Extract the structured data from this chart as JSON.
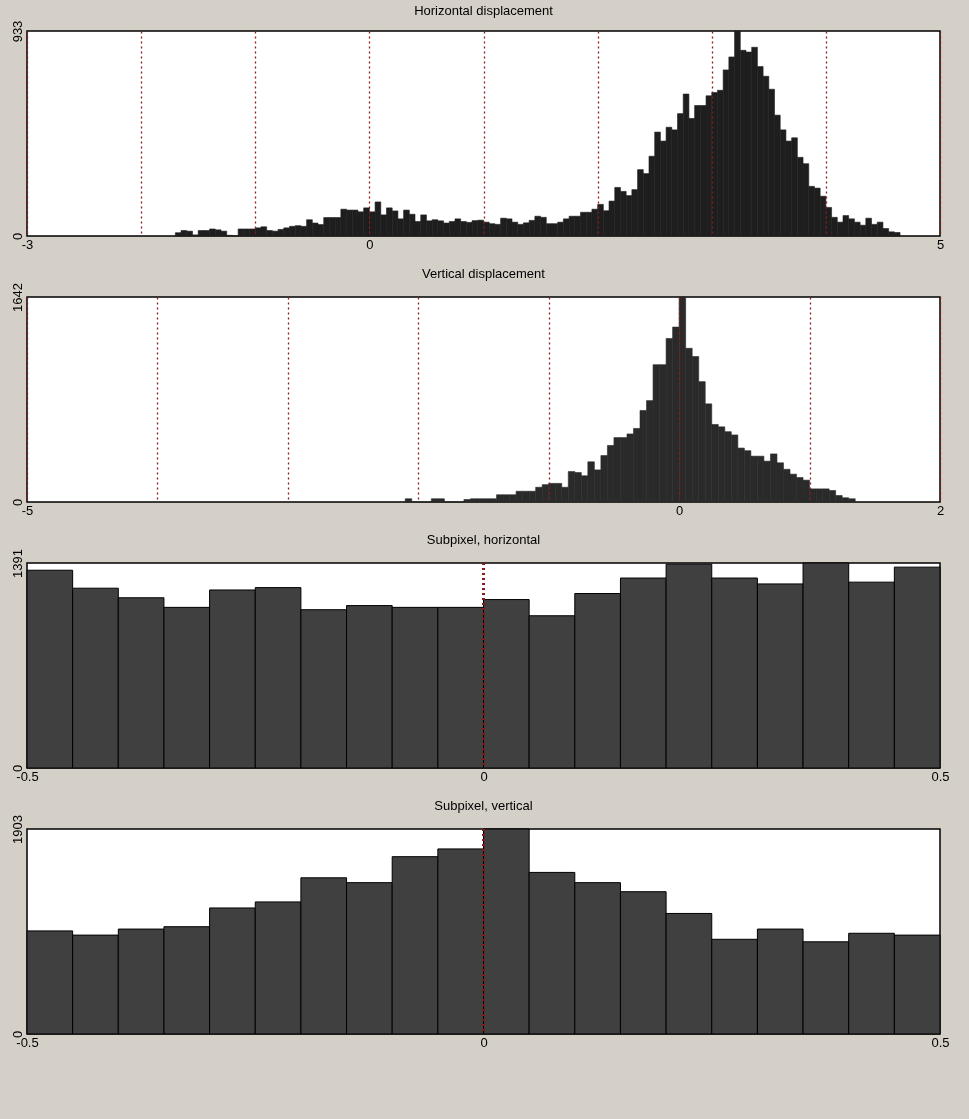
{
  "chart_data": [
    {
      "type": "histogram",
      "title": "Horizontal displacement",
      "color": "#1e1e1e",
      "grid": "x",
      "xlim": [
        -3,
        5
      ],
      "xticks": [
        -3,
        {
          "value": -2,
          "label": null
        },
        {
          "value": -1,
          "label": null
        },
        0,
        {
          "value": 1,
          "label": null
        },
        {
          "value": 2,
          "label": null
        },
        {
          "value": 3,
          "label": null
        },
        {
          "value": 4,
          "label": null
        },
        5
      ],
      "ylim": [
        0,
        933
      ],
      "yticks": [
        0,
        933
      ],
      "bins": [
        -1.7,
        -1.65,
        -1.6,
        -1.55,
        -1.5,
        -1.45,
        -1.4,
        -1.35,
        -1.3,
        -1.25,
        -1.2,
        -1.15,
        -1.1,
        -1.05,
        -1,
        -0.95,
        -0.9,
        -0.85,
        -0.8,
        -0.75,
        -0.7,
        -0.65,
        -0.6,
        -0.55,
        -0.5,
        -0.45,
        -0.4,
        -0.35,
        -0.3,
        -0.25,
        -0.2,
        -0.15,
        -0.1,
        -0.05,
        0,
        0.05,
        0.1,
        0.15,
        0.2,
        0.25,
        0.3,
        0.35,
        0.4,
        0.45,
        0.5,
        0.55,
        0.6,
        0.65,
        0.7,
        0.75,
        0.8,
        0.85,
        0.9,
        0.95,
        1,
        1.05,
        1.1,
        1.15,
        1.2,
        1.25,
        1.3,
        1.35,
        1.4,
        1.45,
        1.5,
        1.55,
        1.6,
        1.65,
        1.7,
        1.75,
        1.8,
        1.85,
        1.9,
        1.95,
        2,
        2.05,
        2.1,
        2.15,
        2.2,
        2.25,
        2.3,
        2.35,
        2.4,
        2.45,
        2.5,
        2.55,
        2.6,
        2.65,
        2.7,
        2.75,
        2.8,
        2.85,
        2.9,
        2.95,
        3,
        3.05,
        3.1,
        3.15,
        3.2,
        3.25,
        3.3,
        3.35,
        3.4,
        3.45,
        3.5,
        3.55,
        3.6,
        3.65,
        3.7,
        3.75,
        3.8,
        3.85,
        3.9,
        3.95,
        4,
        4.05,
        4.1,
        4.15,
        4.2,
        4.25,
        4.3,
        4.35,
        4.4,
        4.45,
        4.5,
        4.55,
        4.6,
        4.65
      ],
      "values": [
        15,
        25,
        22,
        5,
        25,
        25,
        32,
        28,
        22,
        3,
        0,
        32,
        32,
        32,
        37,
        42,
        25,
        22,
        30,
        37,
        44,
        47,
        44,
        74,
        59,
        52,
        84,
        84,
        84,
        122,
        118,
        118,
        110,
        128,
        110,
        155,
        96,
        128,
        114,
        78,
        118,
        99,
        66,
        96,
        69,
        74,
        69,
        59,
        66,
        78,
        66,
        62,
        70,
        72,
        63,
        56,
        53,
        81,
        78,
        63,
        53,
        60,
        71,
        90,
        85,
        56,
        56,
        63,
        78,
        90,
        90,
        108,
        108,
        122,
        144,
        115,
        159,
        221,
        203,
        184,
        211,
        302,
        284,
        363,
        473,
        432,
        495,
        483,
        557,
        646,
        535,
        594,
        594,
        638,
        653,
        663,
        756,
        815,
        933,
        845,
        837,
        859,
        771,
        727,
        668,
        550,
        483,
        432,
        447,
        358,
        329,
        226,
        218,
        181,
        130,
        85,
        63,
        93,
        78,
        63,
        49,
        81,
        53,
        63,
        34,
        19,
        16
      ]
    },
    {
      "type": "histogram",
      "title": "Vertical displacement",
      "color": "#2a2a2a",
      "grid": "x",
      "xlim": [
        -5,
        2
      ],
      "xticks": [
        -5,
        {
          "value": -4,
          "label": null
        },
        {
          "value": -3,
          "label": null
        },
        {
          "value": -2,
          "label": null
        },
        {
          "value": -1,
          "label": null
        },
        0,
        {
          "value": 1,
          "label": null
        },
        2
      ],
      "ylim": [
        0,
        1642
      ],
      "yticks": [
        0,
        1642
      ],
      "bins": [
        -2.1,
        -2.05,
        -2,
        -1.95,
        -1.9,
        -1.85,
        -1.8,
        -1.75,
        -1.7,
        -1.65,
        -1.6,
        -1.55,
        -1.5,
        -1.45,
        -1.4,
        -1.35,
        -1.3,
        -1.25,
        -1.2,
        -1.15,
        -1.1,
        -1.05,
        -1,
        -0.95,
        -0.9,
        -0.85,
        -0.8,
        -0.75,
        -0.7,
        -0.65,
        -0.6,
        -0.55,
        -0.5,
        -0.45,
        -0.4,
        -0.35,
        -0.3,
        -0.25,
        -0.2,
        -0.15,
        -0.1,
        -0.05,
        0,
        0.05,
        0.1,
        0.15,
        0.2,
        0.25,
        0.3,
        0.35,
        0.4,
        0.45,
        0.5,
        0.55,
        0.6,
        0.65,
        0.7,
        0.75,
        0.8,
        0.85,
        0.9,
        0.95,
        1,
        1.05,
        1.1,
        1.15,
        1.2,
        1.25,
        1.3,
        1.35
      ],
      "values": [
        26,
        0,
        0,
        0,
        26,
        26,
        0,
        0,
        0,
        20,
        26,
        26,
        26,
        26,
        58,
        58,
        58,
        86,
        86,
        86,
        118,
        139,
        149,
        149,
        118,
        244,
        236,
        210,
        322,
        257,
        372,
        453,
        516,
        516,
        545,
        589,
        733,
        812,
        1100,
        1100,
        1310,
        1401,
        1642,
        1231,
        1165,
        964,
        786,
        621,
        602,
        563,
        537,
        432,
        411,
        367,
        367,
        327,
        385,
        314,
        262,
        223,
        196,
        175,
        105,
        105,
        105,
        92,
        52,
        34,
        26
      ]
    },
    {
      "type": "histogram",
      "title": "Subpixel, horizontal",
      "color": "#404040",
      "ref_lines": [
        {
          "axis": "x",
          "value": 0,
          "color": "#8b1a1a",
          "line_style": "dotted"
        }
      ],
      "xlim": [
        -0.5,
        0.5
      ],
      "xticks": [
        -0.5,
        0,
        0.5
      ],
      "ylim": [
        0,
        1391
      ],
      "yticks": [
        0,
        1391
      ],
      "bins": [
        -0.5,
        -0.45,
        -0.4,
        -0.35,
        -0.3,
        -0.25,
        -0.2,
        -0.15,
        -0.1,
        -0.05,
        0,
        0.05,
        0.1,
        0.15,
        0.2,
        0.25,
        0.3,
        0.35,
        0.4,
        0.45,
        0.5
      ],
      "values": [
        1342,
        1220,
        1155,
        1090,
        1208,
        1224,
        1074,
        1102,
        1090,
        1090,
        1143,
        1033,
        1184,
        1289,
        1383,
        1289,
        1249,
        1391,
        1261,
        1363
      ]
    },
    {
      "type": "histogram",
      "title": "Subpixel, vertical",
      "color": "#404040",
      "ref_lines": [
        {
          "axis": "x",
          "value": 0,
          "color": "#8b1a1a",
          "line_style": "dotted"
        }
      ],
      "xlim": [
        -0.5,
        0.5
      ],
      "xticks": [
        -0.5,
        0,
        0.5
      ],
      "ylim": [
        0,
        1903
      ],
      "yticks": [
        0,
        1903
      ],
      "bins": [
        -0.5,
        -0.45,
        -0.4,
        -0.35,
        -0.3,
        -0.25,
        -0.2,
        -0.15,
        -0.1,
        -0.05,
        0,
        0.05,
        0.1,
        0.15,
        0.2,
        0.25,
        0.3,
        0.35,
        0.4,
        0.45,
        0.5
      ],
      "values": [
        957,
        918,
        974,
        996,
        1170,
        1226,
        1450,
        1405,
        1646,
        1718,
        1903,
        1500,
        1405,
        1321,
        1119,
        879,
        974,
        856,
        935,
        918
      ]
    }
  ]
}
